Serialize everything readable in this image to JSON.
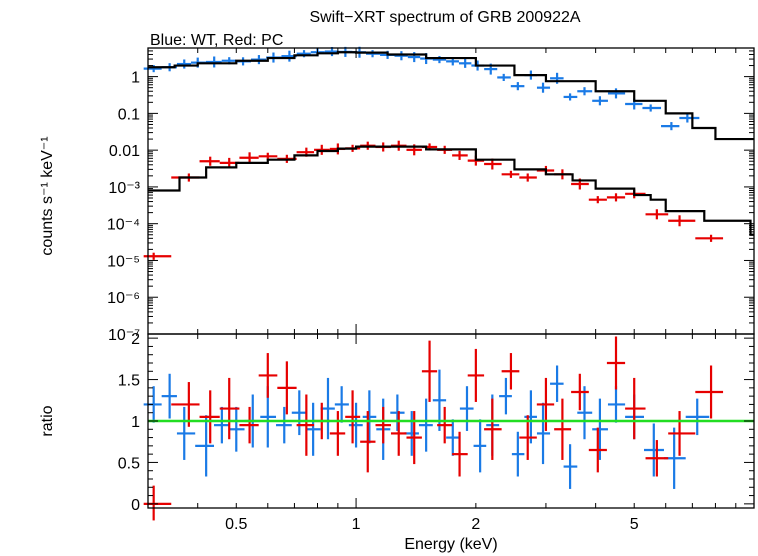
{
  "chart_data": {
    "type": "scatter",
    "title": "Swift−XRT spectrum of GRB 200922A",
    "subtitle": "Blue: WT, Red: PC",
    "xlabel": "Energy (keV)",
    "x_scale": "log",
    "xlim": [
      0.3,
      10
    ],
    "x_ticks": [
      {
        "value": 0.5,
        "label": "0.5"
      },
      {
        "value": 1,
        "label": "1"
      },
      {
        "value": 2,
        "label": "2"
      },
      {
        "value": 5,
        "label": "5"
      }
    ],
    "colors": {
      "wt": "#1a7ae6",
      "pc": "#e60000",
      "model": "#000000",
      "unity": "#22dd22"
    },
    "panels": [
      {
        "name": "spectrum",
        "ylabel": "counts s⁻¹ keV⁻¹",
        "y_scale": "log",
        "ylim": [
          1e-07,
          6
        ],
        "y_ticks": [
          {
            "value": 1,
            "label": "1"
          },
          {
            "value": 0.1,
            "label": "0.1"
          },
          {
            "value": 0.01,
            "label": "0.01"
          },
          {
            "value": 0.001,
            "label": "10⁻³"
          },
          {
            "value": 0.0001,
            "label": "10⁻⁴"
          },
          {
            "value": 1e-05,
            "label": "10⁻⁵"
          },
          {
            "value": 1e-06,
            "label": "10⁻⁶"
          },
          {
            "value": 1e-07,
            "label": "10⁻⁷"
          }
        ],
        "series": [
          {
            "key": "wt",
            "points": [
              [
                0.31,
                1.65
              ],
              [
                0.34,
                1.8
              ],
              [
                0.37,
                2.2
              ],
              [
                0.4,
                2.4
              ],
              [
                0.44,
                2.5
              ],
              [
                0.48,
                2.7
              ],
              [
                0.52,
                2.6
              ],
              [
                0.57,
                2.9
              ],
              [
                0.62,
                3.3
              ],
              [
                0.68,
                3.6
              ],
              [
                0.74,
                4.2
              ],
              [
                0.8,
                4.6
              ],
              [
                0.87,
                4.8
              ],
              [
                0.94,
                4.7
              ],
              [
                1.02,
                4.6
              ],
              [
                1.1,
                4.2
              ],
              [
                1.2,
                3.9
              ],
              [
                1.3,
                3.7
              ],
              [
                1.4,
                3.4
              ],
              [
                1.5,
                3.1
              ],
              [
                1.62,
                2.9
              ],
              [
                1.75,
                2.6
              ],
              [
                1.88,
                2.3
              ],
              [
                2.02,
                2.0
              ],
              [
                2.18,
                1.6
              ],
              [
                2.35,
                0.95
              ],
              [
                2.55,
                0.55
              ],
              [
                2.75,
                1.1
              ],
              [
                2.95,
                0.5
              ],
              [
                3.2,
                0.9
              ],
              [
                3.45,
                0.28
              ],
              [
                3.75,
                0.4
              ],
              [
                4.1,
                0.22
              ],
              [
                4.5,
                0.35
              ],
              [
                5.0,
                0.18
              ],
              [
                5.5,
                0.14
              ],
              [
                6.2,
                0.045
              ],
              [
                6.8,
                0.075
              ]
            ]
          },
          {
            "key": "pc",
            "points": [
              [
                0.31,
                1.3e-05
              ],
              [
                0.38,
                0.0018
              ],
              [
                0.43,
                0.005
              ],
              [
                0.48,
                0.0045
              ],
              [
                0.54,
                0.0062
              ],
              [
                0.6,
                0.0068
              ],
              [
                0.67,
                0.0058
              ],
              [
                0.75,
                0.0088
              ],
              [
                0.82,
                0.0102
              ],
              [
                0.9,
                0.0108
              ],
              [
                0.98,
                0.0112
              ],
              [
                1.07,
                0.0132
              ],
              [
                1.17,
                0.0122
              ],
              [
                1.28,
                0.0132
              ],
              [
                1.4,
                0.0102
              ],
              [
                1.53,
                0.0122
              ],
              [
                1.67,
                0.0102
              ],
              [
                1.82,
                0.0072
              ],
              [
                2.0,
                0.0052
              ],
              [
                2.2,
                0.0042
              ],
              [
                2.45,
                0.0022
              ],
              [
                2.7,
                0.0018
              ],
              [
                3.0,
                0.0028
              ],
              [
                3.3,
                0.0022
              ],
              [
                3.65,
                0.0012
              ],
              [
                4.05,
                0.00045
              ],
              [
                4.5,
                0.00052
              ],
              [
                5.0,
                0.00065
              ],
              [
                5.7,
                0.00018
              ],
              [
                6.5,
                0.00012
              ],
              [
                7.8,
                4e-05
              ]
            ]
          }
        ],
        "models": [
          {
            "key": "wt",
            "points": [
              [
                0.3,
                1.8
              ],
              [
                0.35,
                2.0
              ],
              [
                0.4,
                2.3
              ],
              [
                0.5,
                2.7
              ],
              [
                0.6,
                3.2
              ],
              [
                0.7,
                3.8
              ],
              [
                0.8,
                4.3
              ],
              [
                0.9,
                4.6
              ],
              [
                1.0,
                4.5
              ],
              [
                1.2,
                4.0
              ],
              [
                1.5,
                3.2
              ],
              [
                2.0,
                2.0
              ],
              [
                2.5,
                1.1
              ],
              [
                3.0,
                0.75
              ],
              [
                4.0,
                0.4
              ],
              [
                5.0,
                0.22
              ],
              [
                6.0,
                0.1
              ],
              [
                7.0,
                0.04
              ],
              [
                8.0,
                0.02
              ],
              [
                9.8,
                0.02
              ]
            ]
          },
          {
            "key": "pc",
            "points": [
              [
                0.3,
                0.0008
              ],
              [
                0.36,
                0.0018
              ],
              [
                0.42,
                0.0034
              ],
              [
                0.5,
                0.0045
              ],
              [
                0.6,
                0.0055
              ],
              [
                0.7,
                0.0072
              ],
              [
                0.8,
                0.0095
              ],
              [
                0.9,
                0.011
              ],
              [
                1.0,
                0.0125
              ],
              [
                1.2,
                0.0125
              ],
              [
                1.5,
                0.0105
              ],
              [
                2.0,
                0.0055
              ],
              [
                2.5,
                0.003
              ],
              [
                3.0,
                0.0022
              ],
              [
                3.5,
                0.0015
              ],
              [
                4.0,
                0.0009
              ],
              [
                5.0,
                0.0006
              ],
              [
                5.5,
                0.00045
              ],
              [
                6.0,
                0.00022
              ],
              [
                7.5,
                0.00012
              ],
              [
                9.8,
                5e-05
              ]
            ]
          }
        ]
      },
      {
        "name": "ratio",
        "ylabel": "ratio",
        "y_scale": "linear",
        "ylim": [
          -0.05,
          2.05
        ],
        "y_ticks": [
          {
            "value": 0,
            "label": "0"
          },
          {
            "value": 0.5,
            "label": "0.5"
          },
          {
            "value": 1,
            "label": "1"
          },
          {
            "value": 1.5,
            "label": "1.5"
          },
          {
            "value": 2,
            "label": "2"
          }
        ],
        "unity_line": 1,
        "series": [
          {
            "key": "wt",
            "points": [
              [
                0.31,
                1.2
              ],
              [
                0.34,
                1.3
              ],
              [
                0.37,
                0.85
              ],
              [
                0.42,
                0.7
              ],
              [
                0.46,
                0.95
              ],
              [
                0.5,
                0.9
              ],
              [
                0.55,
                1.0
              ],
              [
                0.6,
                1.05
              ],
              [
                0.66,
                0.95
              ],
              [
                0.72,
                1.1
              ],
              [
                0.78,
                0.9
              ],
              [
                0.85,
                1.15
              ],
              [
                0.92,
                1.2
              ],
              [
                1.0,
                0.95
              ],
              [
                1.08,
                1.05
              ],
              [
                1.17,
                0.9
              ],
              [
                1.27,
                1.1
              ],
              [
                1.38,
                0.85
              ],
              [
                1.5,
                0.95
              ],
              [
                1.62,
                1.25
              ],
              [
                1.75,
                0.8
              ],
              [
                1.9,
                1.15
              ],
              [
                2.05,
                0.7
              ],
              [
                2.2,
                0.95
              ],
              [
                2.38,
                1.3
              ],
              [
                2.55,
                0.6
              ],
              [
                2.75,
                1.05
              ],
              [
                2.95,
                0.85
              ],
              [
                3.2,
                1.45
              ],
              [
                3.45,
                0.45
              ],
              [
                3.75,
                1.1
              ],
              [
                4.1,
                0.9
              ],
              [
                4.5,
                1.2
              ],
              [
                5.0,
                1.05
              ],
              [
                5.6,
                0.65
              ],
              [
                6.3,
                0.55
              ],
              [
                7.2,
                1.05
              ]
            ]
          },
          {
            "key": "pc",
            "points": [
              [
                0.31,
                0.0
              ],
              [
                0.38,
                1.2
              ],
              [
                0.43,
                1.05
              ],
              [
                0.48,
                1.15
              ],
              [
                0.54,
                0.95
              ],
              [
                0.6,
                1.55
              ],
              [
                0.67,
                1.4
              ],
              [
                0.75,
                0.95
              ],
              [
                0.82,
                1.0
              ],
              [
                0.9,
                0.85
              ],
              [
                0.98,
                1.05
              ],
              [
                1.07,
                0.75
              ],
              [
                1.17,
                0.95
              ],
              [
                1.28,
                0.85
              ],
              [
                1.4,
                0.8
              ],
              [
                1.53,
                1.6
              ],
              [
                1.67,
                0.95
              ],
              [
                1.82,
                0.6
              ],
              [
                2.0,
                1.55
              ],
              [
                2.2,
                0.9
              ],
              [
                2.45,
                1.6
              ],
              [
                2.7,
                0.8
              ],
              [
                3.0,
                1.2
              ],
              [
                3.3,
                0.9
              ],
              [
                3.65,
                1.35
              ],
              [
                4.05,
                0.65
              ],
              [
                4.5,
                1.7
              ],
              [
                5.0,
                1.15
              ],
              [
                5.7,
                0.55
              ],
              [
                6.5,
                0.85
              ],
              [
                7.8,
                1.35
              ]
            ]
          }
        ]
      }
    ]
  }
}
